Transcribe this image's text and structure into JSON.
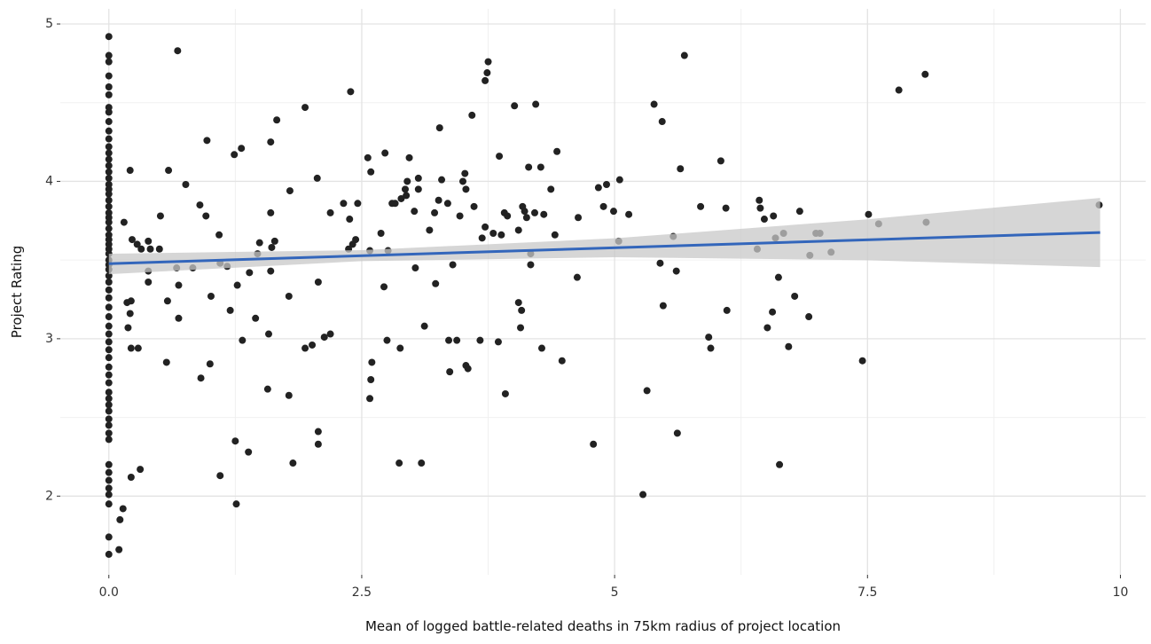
{
  "chart_data": {
    "type": "scatter",
    "x_label": "Mean of logged battle-related deaths in 75km radius of project location",
    "y_label": "Project Rating",
    "xlim": [
      -0.48,
      10.25
    ],
    "ylim": [
      1.5,
      5.096
    ],
    "xticks": [
      {
        "value": 0,
        "label": "0.0"
      },
      2.5,
      5.0,
      7.5,
      10.0
    ],
    "yticks": [
      2,
      3,
      4,
      5
    ],
    "x_minor_ticks": [
      1.25,
      3.75,
      6.25,
      8.75
    ],
    "y_minor_ticks": [
      2.5,
      3.5,
      4.5
    ],
    "grid": true,
    "color": "#222222",
    "x": [
      0,
      0,
      0,
      0,
      0,
      0,
      0,
      0,
      0,
      0,
      0,
      0,
      0,
      0,
      0,
      0,
      0,
      0,
      0,
      0,
      0,
      0,
      0,
      0,
      0,
      0,
      0,
      0,
      0,
      0,
      0,
      0,
      0,
      0,
      0,
      0,
      0,
      0,
      0,
      0,
      0,
      0,
      0,
      0,
      0,
      0,
      0,
      0,
      0,
      0,
      0,
      0,
      0,
      0,
      0,
      0,
      0,
      0,
      0,
      0,
      0,
      0,
      0,
      0,
      0.1,
      0.11,
      0.14,
      0.22,
      0.31,
      0.15,
      0.18,
      0.22,
      0.21,
      0.19,
      0.22,
      0.29,
      0.21,
      0.23,
      0.28,
      0.32,
      0.39,
      0.41,
      0.39,
      0.39,
      0.5,
      0.51,
      0.57,
      0.58,
      0.59,
      0.67,
      0.68,
      0.69,
      0.69,
      0.76,
      0.83,
      0.9,
      0.91,
      0.96,
      0.97,
      1.0,
      1.01,
      1.09,
      1.1,
      1.1,
      1.17,
      1.2,
      1.24,
      1.25,
      1.26,
      1.27,
      1.31,
      1.32,
      1.38,
      1.39,
      1.45,
      1.47,
      1.49,
      1.57,
      1.58,
      1.6,
      1.6,
      1.6,
      1.61,
      1.64,
      1.66,
      1.78,
      1.78,
      1.79,
      1.82,
      1.94,
      1.94,
      2.01,
      2.06,
      2.07,
      2.07,
      2.07,
      2.13,
      2.19,
      2.19,
      2.32,
      2.37,
      2.38,
      2.39,
      2.41,
      2.44,
      2.46,
      2.56,
      2.58,
      2.58,
      2.59,
      2.59,
      2.6,
      2.69,
      2.72,
      2.73,
      2.75,
      2.76,
      2.8,
      2.83,
      2.87,
      2.88,
      2.89,
      2.93,
      2.94,
      2.95,
      2.97,
      3.02,
      3.03,
      3.06,
      3.06,
      3.09,
      3.12,
      3.17,
      3.22,
      3.23,
      3.26,
      3.27,
      3.29,
      3.35,
      3.36,
      3.37,
      3.4,
      3.44,
      3.47,
      3.5,
      3.52,
      3.53,
      3.53,
      3.55,
      3.59,
      3.61,
      3.67,
      3.69,
      3.72,
      3.72,
      3.74,
      3.75,
      3.8,
      3.85,
      3.86,
      3.88,
      3.91,
      3.92,
      3.94,
      4.01,
      4.05,
      4.05,
      4.07,
      4.08,
      4.09,
      4.11,
      4.13,
      4.15,
      4.17,
      4.17,
      4.21,
      4.22,
      4.27,
      4.28,
      4.3,
      4.37,
      4.41,
      4.43,
      4.48,
      4.63,
      4.64,
      4.79,
      4.84,
      4.89,
      4.92,
      4.99,
      5.04,
      5.05,
      5.14,
      5.28,
      5.32,
      5.39,
      5.45,
      5.47,
      5.48,
      5.58,
      5.61,
      5.62,
      5.65,
      5.69,
      5.85,
      5.93,
      5.95,
      6.05,
      6.1,
      6.11,
      6.43,
      6.44,
      6.41,
      6.48,
      6.51,
      6.56,
      6.57,
      6.59,
      6.62,
      6.63,
      6.67,
      6.72,
      6.78,
      6.83,
      6.92,
      6.93,
      6.99,
      7.03,
      7.14,
      7.45,
      7.51,
      7.61,
      7.81,
      8.07,
      8.08,
      9.79
    ],
    "values": [
      4.92,
      4.8,
      4.76,
      4.67,
      4.6,
      4.55,
      4.47,
      4.44,
      4.38,
      4.32,
      4.27,
      4.22,
      4.18,
      4.14,
      4.1,
      4.06,
      4.02,
      3.98,
      3.95,
      3.92,
      3.88,
      3.84,
      3.8,
      3.77,
      3.74,
      3.7,
      3.66,
      3.63,
      3.6,
      3.57,
      3.54,
      3.5,
      3.47,
      3.44,
      3.4,
      3.36,
      3.31,
      3.26,
      3.2,
      3.14,
      3.08,
      3.03,
      2.98,
      2.93,
      2.88,
      2.82,
      2.77,
      2.72,
      2.66,
      2.62,
      2.58,
      2.54,
      2.49,
      2.45,
      2.4,
      2.36,
      2.2,
      2.15,
      2.1,
      2.05,
      2.01,
      1.95,
      1.74,
      1.63,
      1.66,
      1.85,
      1.92,
      2.12,
      2.17,
      3.74,
      3.23,
      3.24,
      3.16,
      3.07,
      2.94,
      2.94,
      4.07,
      3.63,
      3.6,
      3.57,
      3.62,
      3.57,
      3.43,
      3.36,
      3.57,
      3.78,
      2.85,
      3.24,
      4.07,
      3.45,
      4.83,
      3.34,
      3.13,
      3.98,
      3.45,
      3.85,
      2.75,
      3.78,
      4.26,
      2.84,
      3.27,
      3.66,
      2.13,
      3.48,
      3.46,
      3.18,
      4.17,
      2.35,
      1.95,
      3.34,
      4.21,
      2.99,
      2.28,
      3.42,
      3.13,
      3.54,
      3.61,
      2.68,
      3.03,
      4.25,
      3.8,
      3.43,
      3.58,
      3.62,
      4.39,
      2.64,
      3.27,
      3.94,
      2.21,
      4.47,
      2.94,
      2.96,
      4.02,
      3.36,
      2.41,
      2.33,
      3.01,
      3.03,
      3.8,
      3.86,
      3.57,
      3.76,
      4.57,
      3.6,
      3.63,
      3.86,
      4.15,
      3.56,
      2.62,
      4.06,
      2.74,
      2.85,
      3.67,
      3.33,
      4.18,
      2.99,
      3.56,
      3.86,
      3.86,
      2.21,
      2.94,
      3.89,
      3.95,
      3.91,
      4.0,
      4.15,
      3.81,
      3.45,
      3.95,
      4.02,
      2.21,
      3.08,
      3.69,
      3.8,
      3.35,
      3.88,
      4.34,
      4.01,
      3.86,
      2.99,
      2.79,
      3.47,
      2.99,
      3.78,
      4.0,
      4.05,
      3.95,
      2.83,
      2.81,
      4.42,
      3.84,
      2.99,
      3.64,
      3.71,
      4.64,
      4.69,
      4.76,
      3.67,
      2.98,
      4.16,
      3.66,
      3.8,
      2.65,
      3.78,
      4.48,
      3.69,
      3.23,
      3.07,
      3.18,
      3.84,
      3.81,
      3.77,
      4.09,
      3.54,
      3.47,
      3.8,
      4.49,
      4.09,
      2.94,
      3.79,
      3.95,
      3.66,
      4.19,
      2.86,
      3.39,
      3.77,
      2.33,
      3.96,
      3.84,
      3.98,
      3.81,
      3.62,
      4.01,
      3.79,
      2.01,
      2.67,
      4.49,
      3.48,
      4.38,
      3.21,
      3.65,
      3.43,
      2.4,
      4.08,
      4.8,
      3.84,
      3.01,
      2.94,
      4.13,
      3.83,
      3.18,
      3.88,
      3.83,
      3.57,
      3.76,
      3.07,
      3.17,
      3.78,
      3.64,
      3.39,
      2.2,
      3.67,
      2.95,
      3.27,
      3.81,
      3.14,
      3.53,
      3.67,
      3.67,
      3.55,
      2.86,
      3.79,
      3.73,
      4.58,
      4.68,
      3.74,
      3.85
    ],
    "fit": {
      "color": "#3366bb",
      "x": [
        0,
        9.8
      ],
      "values": [
        3.477,
        3.675
      ]
    },
    "band": {
      "color": "#c8c8c8",
      "x": [
        0,
        2.5,
        5,
        7.5,
        9.8
      ],
      "lower": [
        3.41,
        3.493,
        3.518,
        3.499,
        3.455
      ],
      "upper": [
        3.54,
        3.563,
        3.638,
        3.759,
        3.895
      ]
    }
  }
}
